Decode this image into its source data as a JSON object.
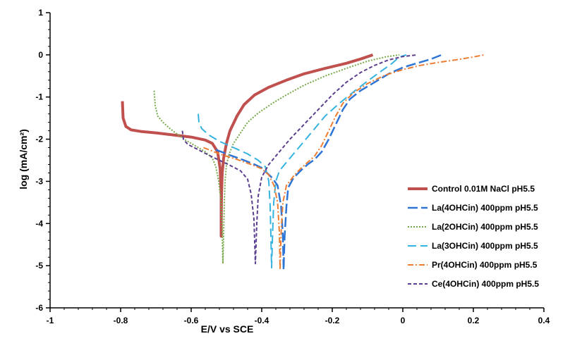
{
  "chart_data": {
    "type": "line",
    "title": "",
    "xlabel": "E/V vs SCE",
    "ylabel": "log (mA/cm²)",
    "xlim": [
      -1,
      0.4
    ],
    "ylim": [
      -6,
      1
    ],
    "x_ticks": [
      -1,
      -0.8,
      -0.6,
      -0.4,
      -0.2,
      0,
      0.2,
      0.4
    ],
    "x_tick_labels": [
      "-1",
      "-0.8",
      "-0.6",
      "-0.4",
      "-0.2",
      "0",
      "0.2",
      "0.4"
    ],
    "y_ticks": [
      -6,
      -5,
      -4,
      -3,
      -2,
      -1,
      0,
      1
    ],
    "y_tick_labels": [
      "-6",
      "-5",
      "-4",
      "-3",
      "-2",
      "-1",
      "0",
      "1"
    ],
    "grid": false,
    "legend_position": "lower-right",
    "series": [
      {
        "name": "Control 0.01M NaCl pH5.5",
        "color": "#C0504D",
        "dash": "solid",
        "width": 4,
        "points": [
          [
            -0.795,
            -1.1
          ],
          [
            -0.793,
            -1.5
          ],
          [
            -0.785,
            -1.7
          ],
          [
            -0.77,
            -1.78
          ],
          [
            -0.74,
            -1.82
          ],
          [
            -0.7,
            -1.85
          ],
          [
            -0.65,
            -1.9
          ],
          [
            -0.6,
            -1.95
          ],
          [
            -0.56,
            -2.02
          ],
          [
            -0.54,
            -2.1
          ],
          [
            -0.525,
            -2.3
          ],
          [
            -0.518,
            -2.7
          ],
          [
            -0.515,
            -3.3
          ],
          [
            -0.515,
            -4.3
          ],
          [
            -0.514,
            -3.3
          ],
          [
            -0.512,
            -2.8
          ],
          [
            -0.508,
            -2.45
          ],
          [
            -0.5,
            -2.1
          ],
          [
            -0.49,
            -1.8
          ],
          [
            -0.47,
            -1.45
          ],
          [
            -0.45,
            -1.18
          ],
          [
            -0.42,
            -0.95
          ],
          [
            -0.38,
            -0.77
          ],
          [
            -0.33,
            -0.6
          ],
          [
            -0.28,
            -0.45
          ],
          [
            -0.22,
            -0.32
          ],
          [
            -0.16,
            -0.2
          ],
          [
            -0.12,
            -0.1
          ],
          [
            -0.085,
            0
          ]
        ]
      },
      {
        "name": "La(4OHCin) 400ppm pH5.5",
        "color": "#2E75D6",
        "dash": "14,5",
        "width": 2.5,
        "points": [
          [
            -0.53,
            -2.25
          ],
          [
            -0.49,
            -2.38
          ],
          [
            -0.45,
            -2.5
          ],
          [
            -0.42,
            -2.6
          ],
          [
            -0.4,
            -2.68
          ],
          [
            -0.385,
            -2.8
          ],
          [
            -0.37,
            -2.92
          ],
          [
            -0.355,
            -3.1
          ],
          [
            -0.345,
            -3.6
          ],
          [
            -0.34,
            -4.3
          ],
          [
            -0.338,
            -5.1
          ],
          [
            -0.335,
            -4.3
          ],
          [
            -0.33,
            -3.6
          ],
          [
            -0.325,
            -3.15
          ],
          [
            -0.31,
            -2.92
          ],
          [
            -0.29,
            -2.75
          ],
          [
            -0.27,
            -2.6
          ],
          [
            -0.25,
            -2.48
          ],
          [
            -0.23,
            -2.3
          ],
          [
            -0.21,
            -2.0
          ],
          [
            -0.19,
            -1.65
          ],
          [
            -0.17,
            -1.3
          ],
          [
            -0.15,
            -1.05
          ],
          [
            -0.12,
            -0.85
          ],
          [
            -0.08,
            -0.65
          ],
          [
            -0.04,
            -0.45
          ],
          [
            0.0,
            -0.3
          ],
          [
            0.04,
            -0.2
          ],
          [
            0.08,
            -0.1
          ],
          [
            0.11,
            0
          ]
        ]
      },
      {
        "name": "La(2OHCin) 400ppm pH5.5",
        "color": "#77A84A",
        "dash": "2,2",
        "width": 2,
        "points": [
          [
            -0.705,
            -0.85
          ],
          [
            -0.702,
            -1.2
          ],
          [
            -0.695,
            -1.45
          ],
          [
            -0.68,
            -1.6
          ],
          [
            -0.66,
            -1.75
          ],
          [
            -0.64,
            -1.88
          ],
          [
            -0.62,
            -2.0
          ],
          [
            -0.59,
            -2.15
          ],
          [
            -0.56,
            -2.3
          ],
          [
            -0.54,
            -2.45
          ],
          [
            -0.53,
            -2.65
          ],
          [
            -0.522,
            -3.0
          ],
          [
            -0.515,
            -3.5
          ],
          [
            -0.512,
            -4.2
          ],
          [
            -0.51,
            -4.95
          ],
          [
            -0.508,
            -4.2
          ],
          [
            -0.506,
            -3.5
          ],
          [
            -0.504,
            -3.0
          ],
          [
            -0.5,
            -2.6
          ],
          [
            -0.49,
            -2.3
          ],
          [
            -0.48,
            -2.1
          ],
          [
            -0.46,
            -1.85
          ],
          [
            -0.44,
            -1.6
          ],
          [
            -0.41,
            -1.38
          ],
          [
            -0.37,
            -1.15
          ],
          [
            -0.33,
            -0.95
          ],
          [
            -0.28,
            -0.72
          ],
          [
            -0.22,
            -0.5
          ],
          [
            -0.16,
            -0.32
          ],
          [
            -0.1,
            -0.15
          ],
          [
            -0.05,
            -0.05
          ],
          [
            -0.01,
            0
          ]
        ]
      },
      {
        "name": "La(3OHCin) 400ppm pH5.5",
        "color": "#35B3E0",
        "dash": "12,6",
        "width": 2,
        "points": [
          [
            -0.58,
            -1.4
          ],
          [
            -0.578,
            -1.6
          ],
          [
            -0.57,
            -1.75
          ],
          [
            -0.55,
            -1.9
          ],
          [
            -0.52,
            -2.05
          ],
          [
            -0.48,
            -2.2
          ],
          [
            -0.44,
            -2.35
          ],
          [
            -0.41,
            -2.5
          ],
          [
            -0.39,
            -2.65
          ],
          [
            -0.38,
            -3.0
          ],
          [
            -0.376,
            -3.6
          ],
          [
            -0.374,
            -4.3
          ],
          [
            -0.372,
            -5.05
          ],
          [
            -0.369,
            -4.2
          ],
          [
            -0.366,
            -3.5
          ],
          [
            -0.36,
            -3.0
          ],
          [
            -0.35,
            -2.75
          ],
          [
            -0.33,
            -2.55
          ],
          [
            -0.31,
            -2.35
          ],
          [
            -0.28,
            -2.05
          ],
          [
            -0.25,
            -1.75
          ],
          [
            -0.22,
            -1.45
          ],
          [
            -0.18,
            -1.15
          ],
          [
            -0.14,
            -0.88
          ],
          [
            -0.1,
            -0.62
          ],
          [
            -0.06,
            -0.38
          ],
          [
            -0.03,
            -0.2
          ],
          [
            -0.01,
            -0.05
          ],
          [
            0.01,
            0
          ]
        ]
      },
      {
        "name": "Pr(4OHCin) 400ppm pH5.5",
        "color": "#ED7D31",
        "dash": "8,3,2,3",
        "width": 2,
        "points": [
          [
            -0.565,
            -2.2
          ],
          [
            -0.52,
            -2.35
          ],
          [
            -0.47,
            -2.48
          ],
          [
            -0.43,
            -2.6
          ],
          [
            -0.4,
            -2.7
          ],
          [
            -0.38,
            -2.85
          ],
          [
            -0.365,
            -3.1
          ],
          [
            -0.355,
            -3.5
          ],
          [
            -0.35,
            -4.2
          ],
          [
            -0.348,
            -5.1
          ],
          [
            -0.345,
            -4.2
          ],
          [
            -0.34,
            -3.5
          ],
          [
            -0.33,
            -3.1
          ],
          [
            -0.31,
            -2.88
          ],
          [
            -0.29,
            -2.7
          ],
          [
            -0.27,
            -2.55
          ],
          [
            -0.25,
            -2.4
          ],
          [
            -0.23,
            -2.15
          ],
          [
            -0.21,
            -1.8
          ],
          [
            -0.19,
            -1.45
          ],
          [
            -0.17,
            -1.15
          ],
          [
            -0.14,
            -0.9
          ],
          [
            -0.1,
            -0.68
          ],
          [
            -0.05,
            -0.48
          ],
          [
            0.0,
            -0.35
          ],
          [
            0.05,
            -0.25
          ],
          [
            0.1,
            -0.18
          ],
          [
            0.15,
            -0.12
          ],
          [
            0.2,
            -0.05
          ],
          [
            0.23,
            0
          ]
        ]
      },
      {
        "name": "Ce(4OHCin) 400ppm pH5.5",
        "color": "#5B3F8E",
        "dash": "5,3",
        "width": 2,
        "points": [
          [
            -0.625,
            -1.8
          ],
          [
            -0.622,
            -2.0
          ],
          [
            -0.61,
            -2.12
          ],
          [
            -0.58,
            -2.25
          ],
          [
            -0.55,
            -2.38
          ],
          [
            -0.52,
            -2.5
          ],
          [
            -0.49,
            -2.62
          ],
          [
            -0.46,
            -2.75
          ],
          [
            -0.44,
            -2.95
          ],
          [
            -0.43,
            -3.3
          ],
          [
            -0.422,
            -3.9
          ],
          [
            -0.418,
            -4.95
          ],
          [
            -0.414,
            -4.0
          ],
          [
            -0.41,
            -3.35
          ],
          [
            -0.4,
            -2.9
          ],
          [
            -0.38,
            -2.6
          ],
          [
            -0.35,
            -2.3
          ],
          [
            -0.32,
            -2.0
          ],
          [
            -0.28,
            -1.65
          ],
          [
            -0.24,
            -1.3
          ],
          [
            -0.2,
            -0.95
          ],
          [
            -0.16,
            -0.65
          ],
          [
            -0.12,
            -0.42
          ],
          [
            -0.08,
            -0.25
          ],
          [
            -0.04,
            -0.12
          ],
          [
            0.0,
            -0.04
          ],
          [
            0.04,
            0
          ]
        ]
      }
    ]
  }
}
